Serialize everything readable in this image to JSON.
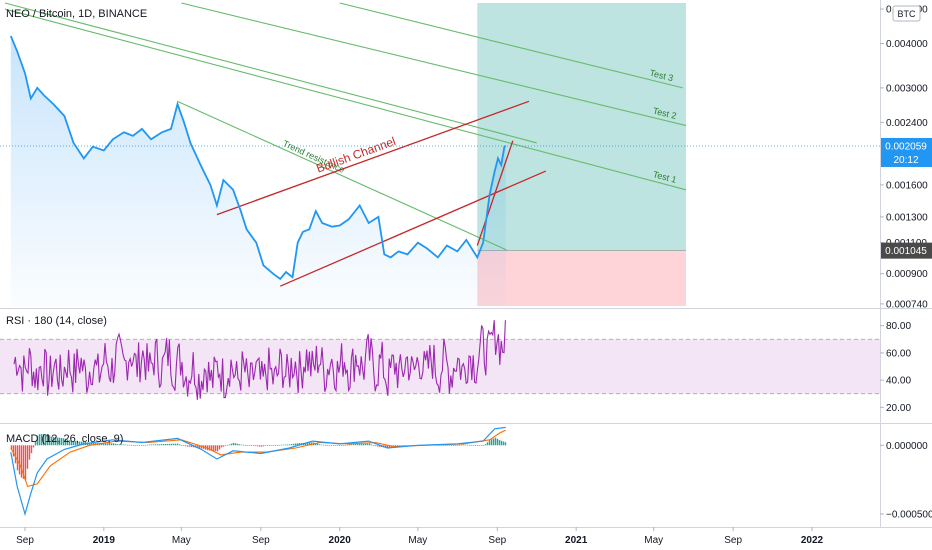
{
  "chart_data": {
    "type": "line",
    "title": "NEO / Bitcoin, 1D, BINANCE",
    "currency_badge": "BTC",
    "colors": {
      "price": "#2196f3",
      "trend_green": "#66bb6a",
      "channel_red": "#c62828",
      "profit_zone": "#b2dfdb",
      "loss_zone": "#ffcdd2",
      "rsi": "#9c27b0",
      "rsi_band": "#f3e5f5",
      "macd_line": "#2196f3",
      "signal_line": "#ff6d00",
      "hist_up": "#26a69a",
      "hist_down": "#ef5350",
      "last_price_bg": "#2196f3",
      "entry_bg": "#4a4a4a"
    },
    "x_axis": {
      "ticks": [
        "Sep",
        "2019",
        "May",
        "Sep",
        "2020",
        "May",
        "Sep",
        "2021",
        "May",
        "Sep",
        "2022"
      ],
      "tick_dates": [
        "2018-09-01",
        "2019-01-01",
        "2019-05-01",
        "2019-09-01",
        "2020-01-01",
        "2020-05-01",
        "2020-09-01",
        "2021-01-01",
        "2021-05-01",
        "2021-09-01",
        "2022-01-01"
      ],
      "bold": [
        "2019",
        "2020",
        "2021",
        "2022"
      ]
    },
    "price_panel": {
      "scale": "log",
      "ylim": [
        0.00073,
        0.0052
      ],
      "y_ticks": [
        0.005,
        0.004,
        0.003,
        0.0024,
        0.0016,
        0.0013,
        0.0011,
        0.0009,
        0.00074
      ],
      "y_tick_labels": [
        "0.005000",
        "0.004000",
        "0.003000",
        "0.002400",
        "0.001600",
        "0.001300",
        "0.001100",
        "0.000900",
        "0.000740"
      ],
      "last_price": 0.002059,
      "last_price_label": "0.002059",
      "countdown_label": "20:12",
      "entry_price": 0.001045,
      "entry_price_label": "0.001045",
      "series": [
        {
          "x": "2018-08-10",
          "y": 0.0042
        },
        {
          "x": "2018-08-20",
          "y": 0.0038
        },
        {
          "x": "2018-09-01",
          "y": 0.0033
        },
        {
          "x": "2018-09-10",
          "y": 0.0028
        },
        {
          "x": "2018-09-20",
          "y": 0.003
        },
        {
          "x": "2018-10-01",
          "y": 0.00285
        },
        {
          "x": "2018-10-15",
          "y": 0.0027
        },
        {
          "x": "2018-11-01",
          "y": 0.0025
        },
        {
          "x": "2018-11-15",
          "y": 0.0021
        },
        {
          "x": "2018-12-01",
          "y": 0.0019
        },
        {
          "x": "2018-12-15",
          "y": 0.00205
        },
        {
          "x": "2019-01-01",
          "y": 0.002
        },
        {
          "x": "2019-01-15",
          "y": 0.00215
        },
        {
          "x": "2019-02-01",
          "y": 0.00225
        },
        {
          "x": "2019-02-15",
          "y": 0.0022
        },
        {
          "x": "2019-03-01",
          "y": 0.0023
        },
        {
          "x": "2019-03-15",
          "y": 0.00215
        },
        {
          "x": "2019-04-01",
          "y": 0.00225
        },
        {
          "x": "2019-04-15",
          "y": 0.0023
        },
        {
          "x": "2019-04-25",
          "y": 0.0027
        },
        {
          "x": "2019-05-05",
          "y": 0.0024
        },
        {
          "x": "2019-05-15",
          "y": 0.0021
        },
        {
          "x": "2019-06-01",
          "y": 0.0018
        },
        {
          "x": "2019-06-15",
          "y": 0.0016
        },
        {
          "x": "2019-06-25",
          "y": 0.0014
        },
        {
          "x": "2019-07-05",
          "y": 0.00165
        },
        {
          "x": "2019-07-20",
          "y": 0.00155
        },
        {
          "x": "2019-08-01",
          "y": 0.00135
        },
        {
          "x": "2019-08-10",
          "y": 0.0012
        },
        {
          "x": "2019-08-25",
          "y": 0.0011
        },
        {
          "x": "2019-09-05",
          "y": 0.00095
        },
        {
          "x": "2019-09-20",
          "y": 0.0009
        },
        {
          "x": "2019-10-01",
          "y": 0.00087
        },
        {
          "x": "2019-10-10",
          "y": 0.00091
        },
        {
          "x": "2019-10-20",
          "y": 0.00088
        },
        {
          "x": "2019-10-28",
          "y": 0.0011
        },
        {
          "x": "2019-11-05",
          "y": 0.00118
        },
        {
          "x": "2019-11-15",
          "y": 0.0012
        },
        {
          "x": "2019-11-25",
          "y": 0.00135
        },
        {
          "x": "2019-12-05",
          "y": 0.00125
        },
        {
          "x": "2019-12-20",
          "y": 0.00122
        },
        {
          "x": "2020-01-01",
          "y": 0.00123
        },
        {
          "x": "2020-01-15",
          "y": 0.00128
        },
        {
          "x": "2020-02-01",
          "y": 0.0014
        },
        {
          "x": "2020-02-15",
          "y": 0.00125
        },
        {
          "x": "2020-03-01",
          "y": 0.0013
        },
        {
          "x": "2020-03-10",
          "y": 0.00102
        },
        {
          "x": "2020-03-20",
          "y": 0.001
        },
        {
          "x": "2020-04-01",
          "y": 0.00104
        },
        {
          "x": "2020-04-15",
          "y": 0.00102
        },
        {
          "x": "2020-05-01",
          "y": 0.0011
        },
        {
          "x": "2020-05-15",
          "y": 0.00106
        },
        {
          "x": "2020-06-01",
          "y": 0.001
        },
        {
          "x": "2020-06-15",
          "y": 0.00108
        },
        {
          "x": "2020-07-01",
          "y": 0.00104
        },
        {
          "x": "2020-07-15",
          "y": 0.00112
        },
        {
          "x": "2020-08-01",
          "y": 0.001
        },
        {
          "x": "2020-08-10",
          "y": 0.0011
        },
        {
          "x": "2020-08-20",
          "y": 0.0015
        },
        {
          "x": "2020-08-28",
          "y": 0.00175
        },
        {
          "x": "2020-09-02",
          "y": 0.0019
        },
        {
          "x": "2020-09-07",
          "y": 0.00182
        },
        {
          "x": "2020-09-12",
          "y": 0.00205
        },
        {
          "x": "2020-09-14",
          "y": 0.00206
        }
      ]
    },
    "drawings": {
      "trend_lines": [
        {
          "label": "",
          "from": {
            "x": "2018-08-01",
            "y": 0.0052
          },
          "to": {
            "x": "2020-11-01",
            "y": 0.0021
          }
        },
        {
          "label": "Test 3",
          "from": {
            "x": "2020-01-01",
            "y": 0.0052
          },
          "to": {
            "x": "2021-06-15",
            "y": 0.003
          }
        },
        {
          "label": "Test 2",
          "from": {
            "x": "2019-05-01",
            "y": 0.0052
          },
          "to": {
            "x": "2021-06-20",
            "y": 0.00235
          }
        },
        {
          "label": "Test 1",
          "from": {
            "x": "2018-08-01",
            "y": 0.005
          },
          "to": {
            "x": "2021-06-20",
            "y": 0.00155
          }
        },
        {
          "label": "Trend resistance",
          "from": {
            "x": "2019-04-25",
            "y": 0.00275
          },
          "to": {
            "x": "2020-09-15",
            "y": 0.00105
          }
        }
      ],
      "channel_lines": [
        {
          "label": "Bullish Channel",
          "from": {
            "x": "2019-06-25",
            "y": 0.00132
          },
          "to": {
            "x": "2020-10-20",
            "y": 0.00275
          }
        },
        {
          "label": "",
          "from": {
            "x": "2019-10-01",
            "y": 0.00083
          },
          "to": {
            "x": "2020-11-15",
            "y": 0.00175
          }
        },
        {
          "label": "",
          "from": {
            "x": "2020-08-01",
            "y": 0.00108
          },
          "to": {
            "x": "2020-09-25",
            "y": 0.00213
          }
        }
      ],
      "position": {
        "start": "2020-08-01",
        "end": "2021-06-20",
        "entry": 0.001045,
        "target": 0.0052,
        "stop": 0.00073
      }
    },
    "rsi_panel": {
      "label": "RSI · 180 (14, close)",
      "ylim": [
        10,
        90
      ],
      "band": [
        30,
        70
      ],
      "y_ticks": [
        80,
        60,
        40,
        20
      ],
      "y_tick_labels": [
        "80.00",
        "60.00",
        "40.00",
        "20.00"
      ],
      "series": [
        {
          "x": "2018-08-15",
          "y": 52
        },
        {
          "x": "2018-09-15",
          "y": 48
        },
        {
          "x": "2018-10-15",
          "y": 45
        },
        {
          "x": "2018-11-15",
          "y": 50
        },
        {
          "x": "2018-12-15",
          "y": 47
        },
        {
          "x": "2019-01-15",
          "y": 53
        },
        {
          "x": "2019-02-15",
          "y": 56
        },
        {
          "x": "2019-03-15",
          "y": 52
        },
        {
          "x": "2019-04-15",
          "y": 55
        },
        {
          "x": "2019-05-15",
          "y": 46
        },
        {
          "x": "2019-06-15",
          "y": 44
        },
        {
          "x": "2019-07-15",
          "y": 47
        },
        {
          "x": "2019-08-15",
          "y": 41
        },
        {
          "x": "2019-09-15",
          "y": 43
        },
        {
          "x": "2019-10-15",
          "y": 48
        },
        {
          "x": "2019-11-15",
          "y": 53
        },
        {
          "x": "2019-12-15",
          "y": 50
        },
        {
          "x": "2020-01-15",
          "y": 52
        },
        {
          "x": "2020-02-15",
          "y": 54
        },
        {
          "x": "2020-03-15",
          "y": 45
        },
        {
          "x": "2020-04-15",
          "y": 50
        },
        {
          "x": "2020-05-15",
          "y": 51
        },
        {
          "x": "2020-06-15",
          "y": 49
        },
        {
          "x": "2020-07-15",
          "y": 52
        },
        {
          "x": "2020-08-15",
          "y": 62
        },
        {
          "x": "2020-09-01",
          "y": 72
        },
        {
          "x": "2020-09-14",
          "y": 66
        }
      ]
    },
    "macd_panel": {
      "label": "MACD (12, 26, close, 9)",
      "ylim": [
        -0.00058,
        0.00014
      ],
      "y_ticks": [
        0.0,
        -0.0005
      ],
      "y_tick_labels": [
        "0.000000",
        "−0.000500"
      ],
      "macd_series": [
        {
          "x": "2018-08-10",
          "y": -5e-05
        },
        {
          "x": "2018-08-20",
          "y": -0.0003
        },
        {
          "x": "2018-09-01",
          "y": -0.0005
        },
        {
          "x": "2018-09-10",
          "y": -0.00035
        },
        {
          "x": "2018-09-20",
          "y": -0.0002
        },
        {
          "x": "2018-10-05",
          "y": -0.0001
        },
        {
          "x": "2018-11-01",
          "y": -3e-05
        },
        {
          "x": "2018-12-01",
          "y": 1e-05
        },
        {
          "x": "2019-01-15",
          "y": 4e-05
        },
        {
          "x": "2019-03-01",
          "y": 2e-05
        },
        {
          "x": "2019-04-25",
          "y": 5e-05
        },
        {
          "x": "2019-06-01",
          "y": -3e-05
        },
        {
          "x": "2019-06-25",
          "y": -0.0001
        },
        {
          "x": "2019-07-20",
          "y": -4e-05
        },
        {
          "x": "2019-09-01",
          "y": -6e-05
        },
        {
          "x": "2019-10-15",
          "y": -2e-05
        },
        {
          "x": "2019-11-20",
          "y": 3e-05
        },
        {
          "x": "2020-01-01",
          "y": 1e-05
        },
        {
          "x": "2020-02-15",
          "y": 3e-05
        },
        {
          "x": "2020-03-15",
          "y": -2e-05
        },
        {
          "x": "2020-05-01",
          "y": 0.0
        },
        {
          "x": "2020-07-01",
          "y": 1e-05
        },
        {
          "x": "2020-08-10",
          "y": 3e-05
        },
        {
          "x": "2020-08-28",
          "y": 0.00012
        },
        {
          "x": "2020-09-14",
          "y": 0.00013
        }
      ],
      "signal_series": [
        {
          "x": "2018-08-10",
          "y": -2e-05
        },
        {
          "x": "2018-08-25",
          "y": -0.00015
        },
        {
          "x": "2018-09-05",
          "y": -0.0003
        },
        {
          "x": "2018-09-20",
          "y": -0.00028
        },
        {
          "x": "2018-10-10",
          "y": -0.00015
        },
        {
          "x": "2018-11-10",
          "y": -5e-05
        },
        {
          "x": "2018-12-10",
          "y": 0.0
        },
        {
          "x": "2019-01-20",
          "y": 3e-05
        },
        {
          "x": "2019-03-10",
          "y": 2e-05
        },
        {
          "x": "2019-05-01",
          "y": 4e-05
        },
        {
          "x": "2019-06-10",
          "y": -2e-05
        },
        {
          "x": "2019-07-01",
          "y": -7e-05
        },
        {
          "x": "2019-08-01",
          "y": -5e-05
        },
        {
          "x": "2019-09-10",
          "y": -5e-05
        },
        {
          "x": "2019-10-25",
          "y": -2e-05
        },
        {
          "x": "2019-12-01",
          "y": 2e-05
        },
        {
          "x": "2020-01-15",
          "y": 1e-05
        },
        {
          "x": "2020-02-25",
          "y": 2e-05
        },
        {
          "x": "2020-03-25",
          "y": -1e-05
        },
        {
          "x": "2020-05-10",
          "y": 0.0
        },
        {
          "x": "2020-07-10",
          "y": 1e-05
        },
        {
          "x": "2020-08-20",
          "y": 4e-05
        },
        {
          "x": "2020-09-05",
          "y": 9e-05
        },
        {
          "x": "2020-09-14",
          "y": 0.00011
        }
      ]
    }
  }
}
